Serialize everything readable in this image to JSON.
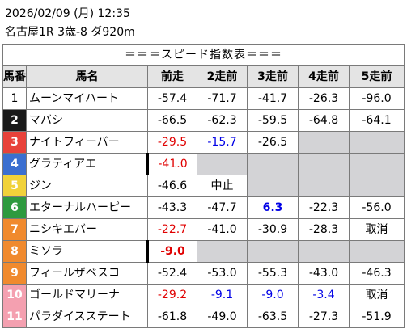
{
  "header": {
    "datetime": "2026/02/09 (月) 12:35",
    "race": "名古屋1R 3歳-8 ダ920m"
  },
  "table": {
    "title": "＝＝＝スピード指数表＝＝＝",
    "columns": [
      "馬番",
      "馬名",
      "前走",
      "2走前",
      "3走前",
      "4走前",
      "5走前"
    ],
    "rows": [
      {
        "num": "1",
        "name": "ムーンマイハート",
        "numBg": "#ffffff",
        "numColor": "#000000",
        "cells": [
          {
            "v": "-57.4"
          },
          {
            "v": "-71.7"
          },
          {
            "v": "-41.7"
          },
          {
            "v": "-26.3"
          },
          {
            "v": "-96.0"
          }
        ]
      },
      {
        "num": "2",
        "name": "マバシ",
        "numBg": "#1a1a1a",
        "numColor": "#ffffff",
        "cells": [
          {
            "v": "-66.5"
          },
          {
            "v": "-62.3"
          },
          {
            "v": "-59.5"
          },
          {
            "v": "-64.8"
          },
          {
            "v": "-64.1"
          }
        ]
      },
      {
        "num": "3",
        "name": "ナイトフィーバー",
        "numBg": "#e8423a",
        "numColor": "#ffffff",
        "cells": [
          {
            "v": "-29.5",
            "c": "red"
          },
          {
            "v": "-15.7",
            "c": "blue"
          },
          {
            "v": "-26.5"
          },
          {
            "blank": true
          },
          {
            "blank": true
          }
        ]
      },
      {
        "num": "4",
        "name": "グラティアエ",
        "numBg": "#3b6fd0",
        "numColor": "#ffffff",
        "mark": true,
        "cells": [
          {
            "v": "-41.0",
            "c": "red"
          },
          {
            "blank": true
          },
          {
            "blank": true
          },
          {
            "blank": true
          },
          {
            "blank": true
          }
        ]
      },
      {
        "num": "5",
        "name": "ジン",
        "numBg": "#f1d23a",
        "numColor": "#ffffff",
        "cells": [
          {
            "v": "-46.6"
          },
          {
            "v": "中止"
          },
          {
            "blank": true
          },
          {
            "blank": true
          },
          {
            "blank": true
          }
        ]
      },
      {
        "num": "6",
        "name": "エターナルハーピー",
        "numBg": "#2e9a3f",
        "numColor": "#ffffff",
        "cells": [
          {
            "v": "-43.3"
          },
          {
            "v": "-47.7"
          },
          {
            "v": "6.3",
            "c": "blue",
            "b": true
          },
          {
            "v": "-22.3"
          },
          {
            "v": "-56.0"
          }
        ]
      },
      {
        "num": "7",
        "name": "ニシキエバー",
        "numBg": "#f08a2e",
        "numColor": "#ffffff",
        "cells": [
          {
            "v": "-22.7",
            "c": "red"
          },
          {
            "v": "-41.0"
          },
          {
            "v": "-30.9"
          },
          {
            "v": "-28.3"
          },
          {
            "v": "取消"
          }
        ]
      },
      {
        "num": "8",
        "name": "ミソラ",
        "numBg": "#f08a2e",
        "numColor": "#ffffff",
        "mark": true,
        "cells": [
          {
            "v": "-9.0",
            "c": "red",
            "b": true
          },
          {
            "blank": true
          },
          {
            "blank": true
          },
          {
            "blank": true
          },
          {
            "blank": true
          }
        ]
      },
      {
        "num": "9",
        "name": "フィールザベスコ",
        "numBg": "#f08a2e",
        "numColor": "#ffffff",
        "cells": [
          {
            "v": "-52.4"
          },
          {
            "v": "-53.0"
          },
          {
            "v": "-55.3"
          },
          {
            "v": "-43.0"
          },
          {
            "v": "-46.3"
          }
        ]
      },
      {
        "num": "10",
        "name": "ゴールドマリーナ",
        "numBg": "#f4a0b0",
        "numColor": "#ffffff",
        "cells": [
          {
            "v": "-29.2",
            "c": "red"
          },
          {
            "v": "-9.1",
            "c": "blue"
          },
          {
            "v": "-9.0",
            "c": "blue"
          },
          {
            "v": "-3.4",
            "c": "blue"
          },
          {
            "v": "取消"
          }
        ]
      },
      {
        "num": "11",
        "name": "パラダイスステート",
        "numBg": "#f4a0b0",
        "numColor": "#ffffff",
        "cells": [
          {
            "v": "-61.8"
          },
          {
            "v": "-49.0"
          },
          {
            "v": "-63.5"
          },
          {
            "v": "-27.3"
          },
          {
            "v": "-51.9"
          }
        ]
      }
    ]
  }
}
